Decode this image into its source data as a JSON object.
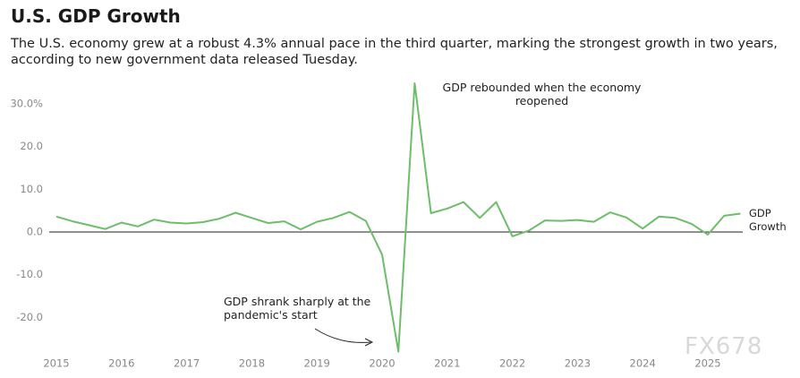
{
  "chart_data": {
    "type": "line",
    "title": "U.S. GDP Growth",
    "subtitle": "The U.S. economy grew at a robust 4.3% annual pace in the third quarter, marking the strongest growth in two years, according to new government data released Tuesday.",
    "categories": [
      "2015",
      null,
      null,
      null,
      "2016",
      null,
      null,
      null,
      "2017",
      null,
      null,
      null,
      "2018",
      null,
      null,
      null,
      "2019",
      null,
      null,
      null,
      "2020",
      null,
      null,
      null,
      "2021",
      null,
      null,
      null,
      "2022",
      null,
      null,
      null,
      "2023",
      null,
      null,
      null,
      "2024",
      null,
      null,
      null,
      "2025",
      null,
      null
    ],
    "series": [
      {
        "name": "GDP Growth",
        "color": "#6dbd6a",
        "values": [
          3.6,
          2.5,
          1.6,
          0.7,
          2.2,
          1.3,
          2.9,
          2.2,
          2.0,
          2.3,
          3.1,
          4.5,
          3.3,
          2.1,
          2.5,
          0.6,
          2.4,
          3.3,
          4.7,
          2.6,
          -5.3,
          -28.0,
          34.8,
          4.4,
          5.5,
          7.0,
          3.3,
          7.0,
          -1.0,
          0.3,
          2.7,
          2.6,
          2.8,
          2.4,
          4.6,
          3.4,
          0.8,
          3.6,
          3.3,
          1.9,
          -0.6,
          3.8,
          4.3
        ]
      }
    ],
    "ylim": [
      -28.5,
      35
    ],
    "yticks": [
      {
        "value": 30,
        "label": "30.0%"
      },
      {
        "value": 20,
        "label": "20.0"
      },
      {
        "value": 10,
        "label": "10.0"
      },
      {
        "value": 0,
        "label": "0.0"
      },
      {
        "value": -10,
        "label": "-10.0"
      },
      {
        "value": -20,
        "label": "-20.0"
      }
    ],
    "annotations": [
      "GDP rebounded when the economy reopened",
      "GDP shrank sharply at the pandemic's start"
    ],
    "watermark": "FX678"
  }
}
